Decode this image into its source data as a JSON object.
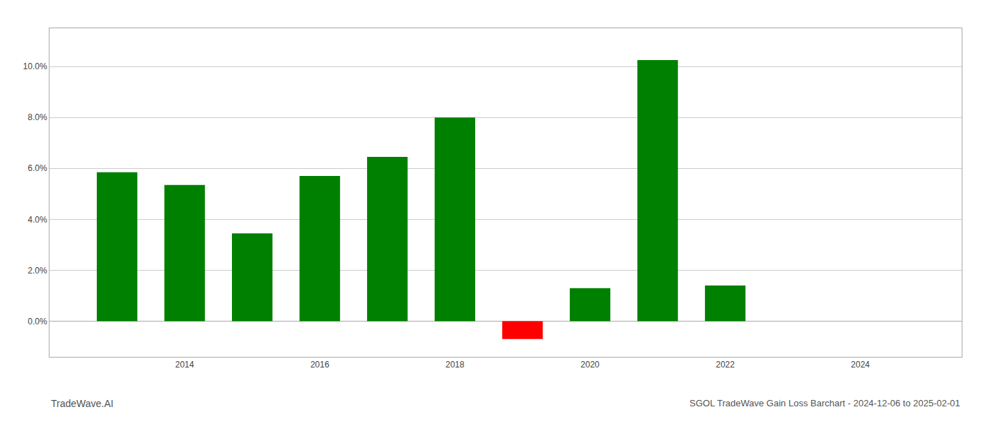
{
  "chart_data": {
    "type": "bar",
    "x": [
      2013,
      2014,
      2015,
      2016,
      2017,
      2018,
      2019,
      2020,
      2021,
      2022
    ],
    "values": [
      0.0585,
      0.0535,
      0.0345,
      0.057,
      0.0645,
      0.08,
      -0.007,
      0.013,
      0.1025,
      0.014
    ],
    "colors": [
      "#008000",
      "#008000",
      "#008000",
      "#008000",
      "#008000",
      "#008000",
      "#ff0000",
      "#008000",
      "#008000",
      "#008000"
    ],
    "xlim": [
      2012.0,
      2025.5
    ],
    "xticks": [
      2014,
      2016,
      2018,
      2020,
      2022,
      2024
    ],
    "ylim": [
      -0.014,
      0.115
    ],
    "yticks": [
      {
        "value": 0.0,
        "label": "0.0%"
      },
      {
        "value": 0.02,
        "label": "2.0%"
      },
      {
        "value": 0.04,
        "label": "4.0%"
      },
      {
        "value": 0.06,
        "label": "6.0%"
      },
      {
        "value": 0.08,
        "label": "8.0%"
      },
      {
        "value": 0.1,
        "label": "10.0%"
      }
    ],
    "grid": true,
    "annotations": [
      "TradeWave.AI",
      "SGOL TradeWave Gain Loss Barchart - 2024-12-06 to 2025-02-01"
    ]
  }
}
